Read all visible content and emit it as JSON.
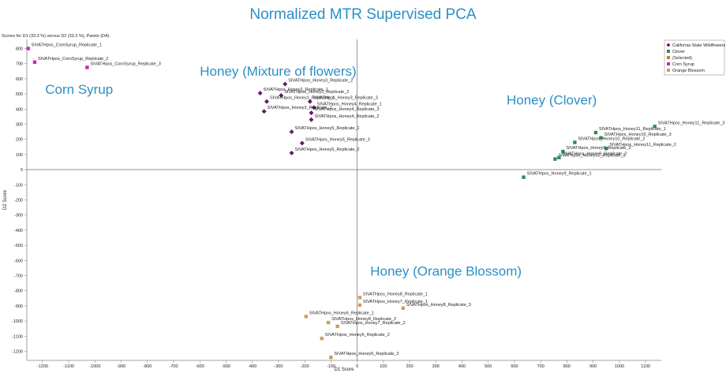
{
  "chart_data": {
    "type": "scatter",
    "title": "Normalized MTR Supervised PCA",
    "subtitle": "Scores for D1 (33.3 %) versus D2 (33.3 %), Pareto (DA)",
    "xlabel": "D1 Score",
    "ylabel": "D2 Score",
    "xlim": [
      -1260,
      1160
    ],
    "ylim": [
      -1260,
      860
    ],
    "xticks": [
      -1200,
      -1100,
      -1000,
      -900,
      -800,
      -700,
      -600,
      -500,
      -400,
      -300,
      -200,
      -100,
      0,
      100,
      200,
      300,
      400,
      500,
      600,
      700,
      800,
      900,
      1000,
      1100
    ],
    "yticks": [
      800,
      700,
      600,
      500,
      400,
      300,
      200,
      100,
      0,
      -100,
      -200,
      -300,
      -400,
      -500,
      -600,
      -700,
      -800,
      -900,
      -1000,
      -1100,
      -1200
    ],
    "grid": false,
    "legend_position": "top-right",
    "legend": [
      {
        "name": "California State Wildflowers",
        "color": "#6a1a6a",
        "marker": "diamond"
      },
      {
        "name": "Clover",
        "color": "#2e8b57",
        "marker": "square"
      },
      {
        "name": "(Selected)",
        "color": "#e07030",
        "marker": "square"
      },
      {
        "name": "Corn Syrup",
        "color": "#d020c0",
        "marker": "square"
      },
      {
        "name": "Orange Blossom",
        "color": "#c8a060",
        "marker": "square"
      }
    ],
    "annotations": [
      {
        "text": "Corn Syrup",
        "x": -1190,
        "y": 500
      },
      {
        "text": "Honey (Mixture of flowers)",
        "x": -600,
        "y": 620
      },
      {
        "text": "Honey (Clover)",
        "x": 570,
        "y": 430
      },
      {
        "text": "Honey (Orange Blossom)",
        "x": 50,
        "y": -700
      }
    ],
    "series": [
      {
        "name": "California State Wildflowers",
        "marker": "diamond",
        "color": "#6a1a6a",
        "points": [
          {
            "x": -275,
            "y": 565,
            "label": "SIVATHpos_Honey3_Replicate_2"
          },
          {
            "x": -290,
            "y": 490,
            "label": "SIVATHpos_Honey2_Replicate_2"
          },
          {
            "x": -370,
            "y": 505,
            "label": "SIVATHpos_Honey2_Replicate_1"
          },
          {
            "x": -345,
            "y": 450,
            "label": "SIVATHpos_Honey1_Replicate_1"
          },
          {
            "x": -180,
            "y": 450,
            "label": "SIVATHpos_Honey3_Replicate_3"
          },
          {
            "x": -165,
            "y": 410,
            "label": "SIVATHpos_Honey4_Replicate_1"
          },
          {
            "x": -355,
            "y": 385,
            "label": "SIVATHpos_Honey3_Replicate_1"
          },
          {
            "x": -175,
            "y": 375,
            "label": "SIVATHpos_Honey4_Replicate_3"
          },
          {
            "x": -175,
            "y": 330,
            "label": "SIVATHpos_Honey4_Replicate_2"
          },
          {
            "x": -250,
            "y": 250,
            "label": "SIVATHpos_Honey5_Replicate_1"
          },
          {
            "x": -210,
            "y": 175,
            "label": "SIVATHpos_Honey5_Replicate_3"
          },
          {
            "x": -250,
            "y": 110,
            "label": "SIVATHpos_Honey5_Replicate_2"
          }
        ]
      },
      {
        "name": "Clover",
        "marker": "square",
        "color": "#2e8b57",
        "points": [
          {
            "x": 1135,
            "y": 285,
            "label": "SIVATHpos_Honey11_Replicate_3"
          },
          {
            "x": 910,
            "y": 245,
            "label": "SIVATHpos_Honey11_Replicate_1"
          },
          {
            "x": 930,
            "y": 210,
            "label": "SIVATHpos_Honey10_Replicate_3"
          },
          {
            "x": 830,
            "y": 180,
            "label": "SIVATHpos_Honey10_Replicate_2"
          },
          {
            "x": 950,
            "y": 140,
            "label": "SIVATHpos_Honey11_Replicate_2"
          },
          {
            "x": 785,
            "y": 120,
            "label": "SIVATHpos_Honey9_Replicate_3"
          },
          {
            "x": 755,
            "y": 70,
            "label": "SIVATHpos_Honey10_Replicate_1"
          },
          {
            "x": 770,
            "y": 80,
            "label": "SIVATHpos_Honey9_Replicate_2"
          },
          {
            "x": 635,
            "y": -50,
            "label": "SIVATHpos_Honey9_Replicate_1"
          }
        ]
      },
      {
        "name": "Corn Syrup",
        "marker": "square",
        "color": "#d020c0",
        "points": [
          {
            "x": -1255,
            "y": 800,
            "label": "SIVATHpos_CornSyrup_Replicate_1"
          },
          {
            "x": -1230,
            "y": 710,
            "label": "SIVATHpos_CornSyrup_Replicate_2"
          },
          {
            "x": -1030,
            "y": 675,
            "label": "SIVATHpos_CornSyrup_Replicate_3"
          }
        ]
      },
      {
        "name": "Orange Blossom",
        "marker": "square",
        "color": "#c8a060",
        "points": [
          {
            "x": 10,
            "y": -845,
            "label": "SIVATHpos_Honey8_Replicate_1"
          },
          {
            "x": 10,
            "y": -895,
            "label": "SIVATHpos_Honey7_Replicate_1"
          },
          {
            "x": 175,
            "y": -915,
            "label": "SIVATHpos_Honey8_Replicate_3"
          },
          {
            "x": -195,
            "y": -970,
            "label": "SIVATHpos_Honey6_Replicate_1"
          },
          {
            "x": -110,
            "y": -1010,
            "label": "SIVATHpos_Honey8_Replicate_2"
          },
          {
            "x": -75,
            "y": -1035,
            "label": "SIVATHpos_Honey7_Replicate_2"
          },
          {
            "x": -135,
            "y": -1115,
            "label": "SIVATHpos_Honey6_Replicate_2"
          },
          {
            "x": -100,
            "y": -1240,
            "label": "SIVATHpos_Honey6_Replicate_3"
          }
        ]
      }
    ]
  }
}
